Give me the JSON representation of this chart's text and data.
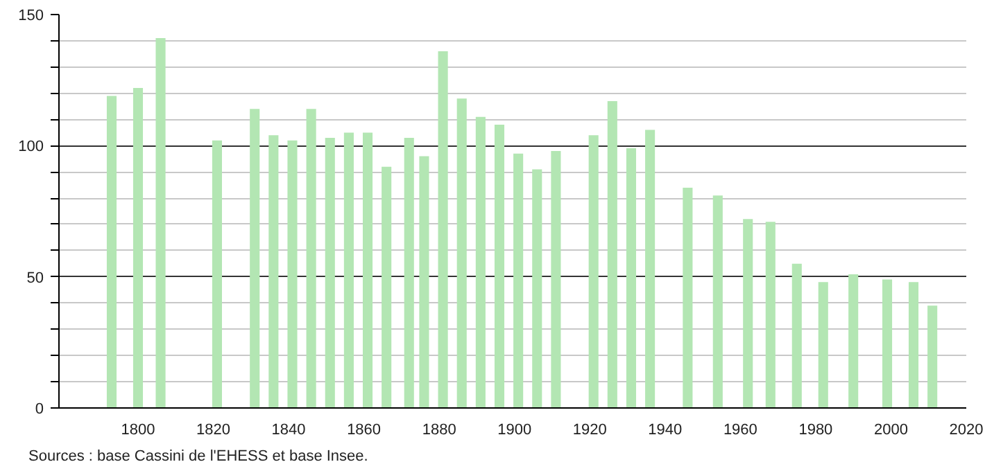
{
  "chart_data": {
    "type": "bar",
    "x": [
      1793,
      1800,
      1806,
      1821,
      1831,
      1836,
      1841,
      1846,
      1851,
      1856,
      1861,
      1866,
      1872,
      1876,
      1881,
      1886,
      1891,
      1896,
      1901,
      1906,
      1911,
      1921,
      1926,
      1931,
      1936,
      1946,
      1954,
      1962,
      1968,
      1975,
      1982,
      1990,
      1999,
      2006,
      2011
    ],
    "values": [
      119,
      122,
      141,
      102,
      114,
      104,
      102,
      114,
      103,
      105,
      105,
      92,
      103,
      96,
      136,
      118,
      111,
      108,
      97,
      91,
      98,
      104,
      117,
      99,
      106,
      84,
      81,
      72,
      71,
      55,
      48,
      51,
      49,
      48,
      39
    ],
    "color": "#b3e6b3",
    "xlim": [
      1779,
      2020
    ],
    "xticks": [
      1800,
      1820,
      1840,
      1860,
      1880,
      1900,
      1920,
      1940,
      1960,
      1980,
      2000,
      2020
    ],
    "ylim": [
      0,
      150
    ],
    "yticks": [
      0,
      {
        "value": 10,
        "label": null
      },
      {
        "value": 20,
        "label": null
      },
      {
        "value": 30,
        "label": null
      },
      {
        "value": 40,
        "label": null
      },
      50,
      {
        "value": 60,
        "label": null
      },
      {
        "value": 70,
        "label": null
      },
      {
        "value": 80,
        "label": null
      },
      {
        "value": 90,
        "label": null
      },
      100,
      {
        "value": 110,
        "label": null
      },
      {
        "value": 120,
        "label": null
      },
      {
        "value": 130,
        "label": null
      },
      {
        "value": 140,
        "label": null
      },
      150
    ],
    "grid": "y",
    "annotations": [
      "Sources : base Cassini de l'EHESS et base Insee."
    ]
  }
}
